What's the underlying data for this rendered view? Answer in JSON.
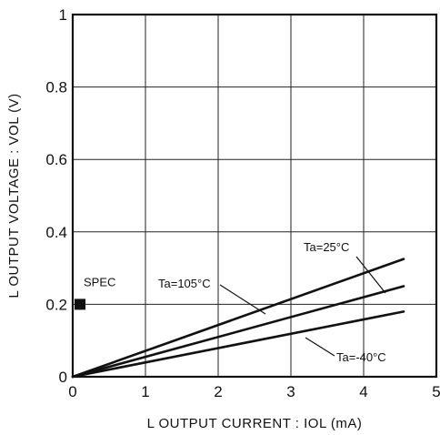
{
  "chart_data": {
    "type": "line",
    "title": "",
    "xlabel": "L OUTPUT CURRENT : IOL (mA)",
    "ylabel": "L OUTPUT VOLTAGE : VOL (V)",
    "xlim": [
      0,
      5
    ],
    "ylim": [
      0,
      1
    ],
    "x_ticks": [
      "0",
      "1",
      "2",
      "3",
      "4",
      "5"
    ],
    "y_ticks": [
      "0",
      "0.2",
      "0.4",
      "0.6",
      "0.8",
      "1"
    ],
    "grid": true,
    "series": [
      {
        "name": "Ta=105°C",
        "x": [
          0,
          4.55
        ],
        "y": [
          0,
          0.325
        ]
      },
      {
        "name": "Ta=25°C",
        "x": [
          0,
          4.55
        ],
        "y": [
          0,
          0.25
        ]
      },
      {
        "name": "Ta=-40°C",
        "x": [
          0,
          4.55
        ],
        "y": [
          0,
          0.18
        ]
      }
    ],
    "spec_marker": {
      "label": "SPEC",
      "x": 0.1,
      "y": 0.2
    }
  }
}
